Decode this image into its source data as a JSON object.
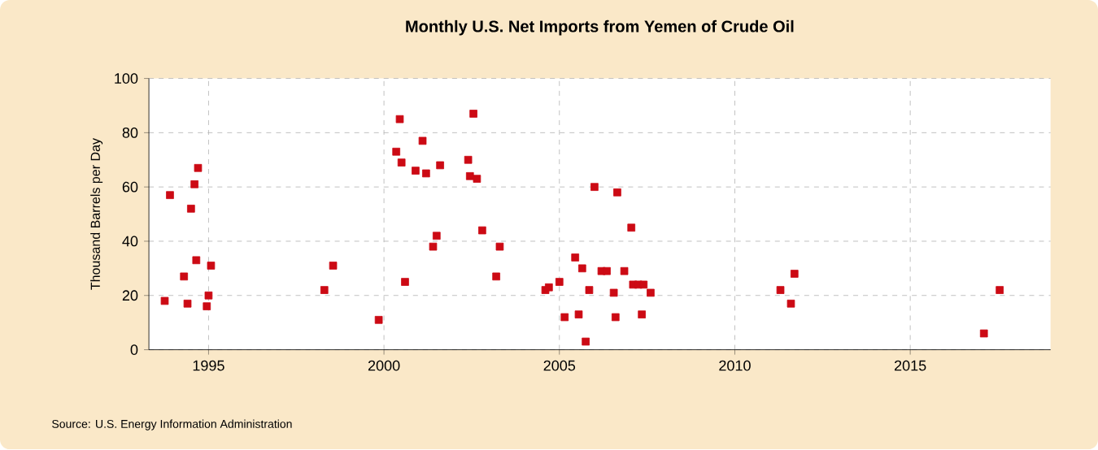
{
  "chart_data": {
    "type": "scatter",
    "title": "Monthly U.S. Net Imports from Yemen of Crude Oil",
    "ylabel": "Thousand Barrels per Day",
    "annotations": [
      "Source: U.S. Energy Information Administration"
    ],
    "x": [
      1993.75,
      1993.9,
      1994.3,
      1994.4,
      1994.5,
      1994.6,
      1994.65,
      1994.7,
      1994.95,
      1995.0,
      1995.07,
      1998.3,
      1998.55,
      1999.85,
      2000.35,
      2000.45,
      2000.5,
      2000.6,
      2000.9,
      2001.1,
      2001.2,
      2001.4,
      2001.5,
      2001.6,
      2002.4,
      2002.45,
      2002.55,
      2002.65,
      2002.8,
      2003.2,
      2003.3,
      2004.6,
      2004.7,
      2005.0,
      2005.15,
      2005.45,
      2005.55,
      2005.65,
      2005.75,
      2005.85,
      2006.0,
      2006.2,
      2006.35,
      2006.55,
      2006.6,
      2006.65,
      2006.85,
      2007.05,
      2007.1,
      2007.25,
      2007.35,
      2007.4,
      2007.6,
      2011.3,
      2011.6,
      2011.7,
      2017.1,
      2017.55
    ],
    "values": [
      18,
      57,
      27,
      17,
      52,
      61,
      33,
      67,
      16,
      20,
      31,
      22,
      31,
      11,
      73,
      85,
      69,
      25,
      66,
      77,
      65,
      38,
      42,
      68,
      70,
      64,
      87,
      63,
      44,
      27,
      38,
      22,
      23,
      25,
      12,
      34,
      13,
      30,
      3,
      22,
      60,
      29,
      29,
      21,
      12,
      58,
      29,
      45,
      24,
      24,
      13,
      24,
      21,
      22,
      17,
      28,
      6,
      22
    ],
    "color": "#cc0a14",
    "marker": "square",
    "grid": true,
    "xlim": [
      1993.3,
      2019.0
    ],
    "xticks": [
      1995,
      2000,
      2005,
      2010,
      2015
    ],
    "ylim": [
      0,
      100
    ],
    "yticks": [
      0,
      20,
      40,
      60,
      80,
      100
    ]
  }
}
